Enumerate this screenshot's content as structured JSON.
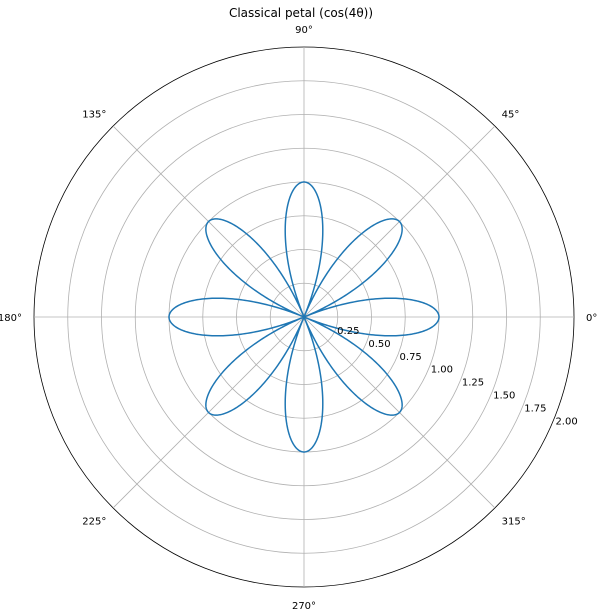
{
  "chart_data": {
    "type": "line",
    "projection": "polar",
    "title": "Classical petal (cos(4θ))",
    "angle_unit": "degrees",
    "angle_ticks": [
      0,
      45,
      90,
      135,
      180,
      225,
      270,
      315
    ],
    "angle_tick_labels": [
      "0°",
      "45°",
      "90°",
      "135°",
      "180°",
      "225°",
      "270°",
      "315°"
    ],
    "rlim": [
      0,
      2.0
    ],
    "radial_ticks": [
      0.25,
      0.5,
      0.75,
      1.0,
      1.25,
      1.5,
      1.75,
      2.0
    ],
    "radial_tick_labels": [
      "0.25",
      "0.50",
      "0.75",
      "1.00",
      "1.25",
      "1.50",
      "1.75",
      "2.00"
    ],
    "radial_label_angle_deg": -22.5,
    "grid": true,
    "series": [
      {
        "function": "r = cos(4θ)",
        "theta_range_deg": [
          0,
          360
        ],
        "amplitude": 1.0,
        "frequency": 4,
        "color": "#1f77b4"
      }
    ]
  }
}
